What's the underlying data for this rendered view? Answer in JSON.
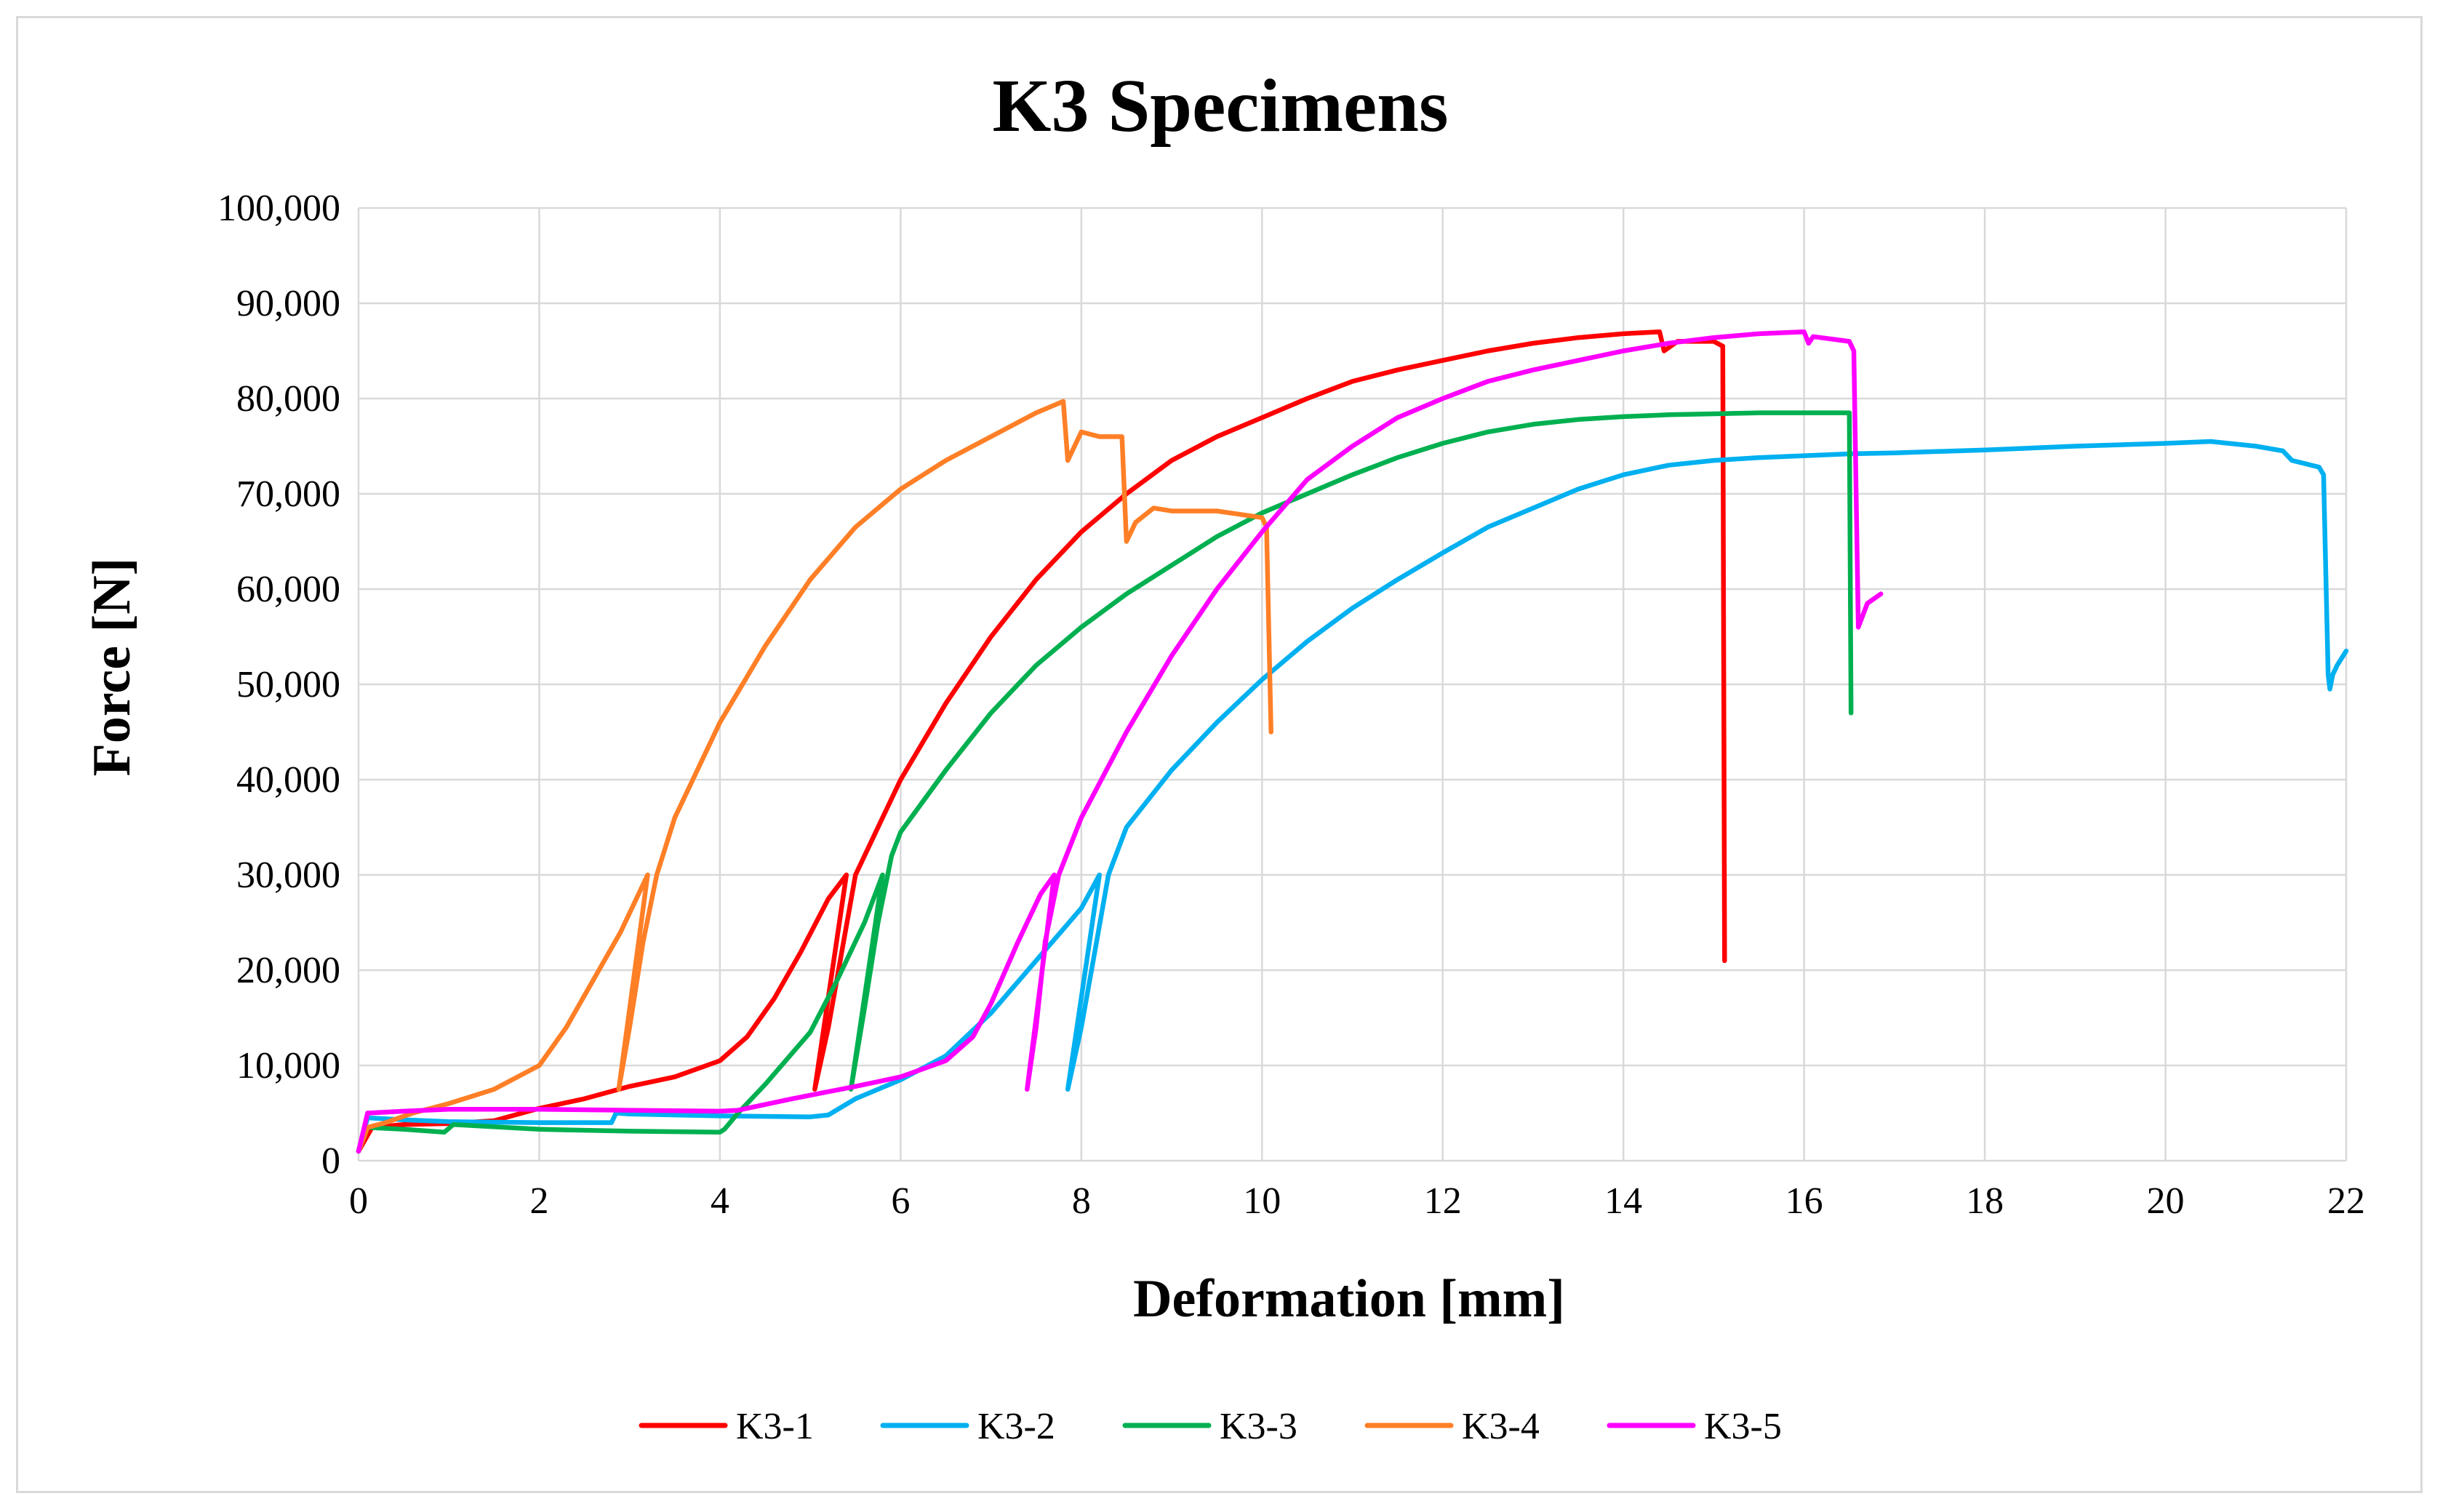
{
  "chart_data": {
    "type": "line",
    "title": "K3 Specimens",
    "xlabel": "Deformation  [mm]",
    "ylabel": "Force  [N]",
    "xlim": [
      0,
      22
    ],
    "ylim": [
      0,
      100000
    ],
    "x_ticks": [
      0,
      2,
      4,
      6,
      8,
      10,
      12,
      14,
      16,
      18,
      20,
      22
    ],
    "x_tick_labels": [
      "0",
      "2",
      "4",
      "6",
      "8",
      "10",
      "12",
      "14",
      "16",
      "18",
      "20",
      "22"
    ],
    "y_ticks": [
      0,
      10000,
      20000,
      30000,
      40000,
      50000,
      60000,
      70000,
      80000,
      90000,
      100000
    ],
    "y_tick_labels": [
      "0",
      "10,000",
      "20,000",
      "30,000",
      "40,000",
      "50,000",
      "60,000",
      "70,000",
      "80,000",
      "90,000",
      "100,000"
    ],
    "grid": true,
    "legend_position": "bottom",
    "series": [
      {
        "name": "K3-1",
        "color": "#ff0000",
        "points": [
          [
            0,
            1000
          ],
          [
            0.15,
            3500
          ],
          [
            0.5,
            3800
          ],
          [
            1,
            3900
          ],
          [
            1.5,
            4200
          ],
          [
            2,
            5500
          ],
          [
            2.5,
            6500
          ],
          [
            3,
            7800
          ],
          [
            3.5,
            8800
          ],
          [
            4,
            10500
          ],
          [
            4.3,
            13000
          ],
          [
            4.6,
            17000
          ],
          [
            4.9,
            22000
          ],
          [
            5.2,
            27500
          ],
          [
            5.4,
            30000
          ],
          [
            5.05,
            7500
          ],
          [
            5.2,
            14000
          ],
          [
            5.35,
            22000
          ],
          [
            5.5,
            30000
          ],
          [
            5.8,
            36000
          ],
          [
            6,
            40000
          ],
          [
            6.5,
            48000
          ],
          [
            7,
            55000
          ],
          [
            7.5,
            61000
          ],
          [
            8,
            66000
          ],
          [
            8.5,
            70000
          ],
          [
            9,
            73500
          ],
          [
            9.5,
            76000
          ],
          [
            10,
            78000
          ],
          [
            10.5,
            80000
          ],
          [
            11,
            81800
          ],
          [
            11.5,
            83000
          ],
          [
            12,
            84000
          ],
          [
            12.5,
            85000
          ],
          [
            13,
            85800
          ],
          [
            13.5,
            86400
          ],
          [
            14,
            86800
          ],
          [
            14.4,
            87000
          ],
          [
            14.45,
            85000
          ],
          [
            14.6,
            86000
          ],
          [
            15,
            86000
          ],
          [
            15.1,
            85500
          ],
          [
            15.12,
            21000
          ]
        ]
      },
      {
        "name": "K3-2",
        "color": "#00b0f0",
        "points": [
          [
            0,
            1000
          ],
          [
            0.1,
            4500
          ],
          [
            0.5,
            4300
          ],
          [
            1,
            4100
          ],
          [
            2,
            4000
          ],
          [
            2.8,
            4000
          ],
          [
            2.85,
            5000
          ],
          [
            3,
            4900
          ],
          [
            4,
            4700
          ],
          [
            5,
            4600
          ],
          [
            5.2,
            4800
          ],
          [
            5.5,
            6500
          ],
          [
            6,
            8500
          ],
          [
            6.5,
            11000
          ],
          [
            7,
            15500
          ],
          [
            7.5,
            21000
          ],
          [
            8,
            26500
          ],
          [
            8.2,
            30000
          ],
          [
            7.85,
            7500
          ],
          [
            8.0,
            14000
          ],
          [
            8.15,
            22000
          ],
          [
            8.3,
            30000
          ],
          [
            8.5,
            35000
          ],
          [
            9,
            41000
          ],
          [
            9.5,
            46000
          ],
          [
            10,
            50500
          ],
          [
            10.5,
            54500
          ],
          [
            11,
            58000
          ],
          [
            11.5,
            61000
          ],
          [
            12,
            63800
          ],
          [
            12.5,
            66500
          ],
          [
            13,
            68500
          ],
          [
            13.5,
            70500
          ],
          [
            14,
            72000
          ],
          [
            14.5,
            73000
          ],
          [
            15,
            73500
          ],
          [
            15.5,
            73800
          ],
          [
            16,
            74000
          ],
          [
            16.5,
            74200
          ],
          [
            17,
            74300
          ],
          [
            18,
            74600
          ],
          [
            19,
            75000
          ],
          [
            20,
            75300
          ],
          [
            20.5,
            75500
          ],
          [
            21,
            75000
          ],
          [
            21.3,
            74500
          ],
          [
            21.4,
            73500
          ],
          [
            21.7,
            72800
          ],
          [
            21.75,
            72000
          ],
          [
            21.8,
            51000
          ],
          [
            21.82,
            49500
          ],
          [
            21.85,
            51000
          ],
          [
            21.9,
            52000
          ],
          [
            22,
            53500
          ]
        ]
      },
      {
        "name": "K3-3",
        "color": "#00b050",
        "points": [
          [
            0,
            1000
          ],
          [
            0.1,
            3500
          ],
          [
            0.5,
            3300
          ],
          [
            0.95,
            3000
          ],
          [
            1.05,
            3800
          ],
          [
            2,
            3300
          ],
          [
            3,
            3100
          ],
          [
            4,
            3000
          ],
          [
            4.05,
            3300
          ],
          [
            4.2,
            5000
          ],
          [
            4.5,
            8000
          ],
          [
            5,
            13500
          ],
          [
            5.3,
            19000
          ],
          [
            5.6,
            25000
          ],
          [
            5.8,
            30000
          ],
          [
            5.45,
            7500
          ],
          [
            5.6,
            16000
          ],
          [
            5.75,
            25000
          ],
          [
            5.9,
            32000
          ],
          [
            6,
            34500
          ],
          [
            6.5,
            41000
          ],
          [
            7,
            47000
          ],
          [
            7.5,
            52000
          ],
          [
            8,
            56000
          ],
          [
            8.5,
            59500
          ],
          [
            9,
            62500
          ],
          [
            9.5,
            65500
          ],
          [
            10,
            68000
          ],
          [
            10.5,
            70000
          ],
          [
            11,
            72000
          ],
          [
            11.5,
            73800
          ],
          [
            12,
            75300
          ],
          [
            12.5,
            76500
          ],
          [
            13,
            77300
          ],
          [
            13.5,
            77800
          ],
          [
            14,
            78100
          ],
          [
            14.5,
            78300
          ],
          [
            15,
            78400
          ],
          [
            15.5,
            78500
          ],
          [
            16,
            78500
          ],
          [
            16.5,
            78500
          ],
          [
            16.52,
            47000
          ]
        ]
      },
      {
        "name": "K3-4",
        "color": "#ff7f27",
        "points": [
          [
            0,
            1000
          ],
          [
            0.1,
            3500
          ],
          [
            0.3,
            4000
          ],
          [
            0.6,
            5000
          ],
          [
            1,
            6000
          ],
          [
            1.5,
            7500
          ],
          [
            2,
            10000
          ],
          [
            2.3,
            14000
          ],
          [
            2.6,
            19000
          ],
          [
            2.9,
            24000
          ],
          [
            3.2,
            30000
          ],
          [
            2.88,
            7500
          ],
          [
            3.0,
            14000
          ],
          [
            3.15,
            23000
          ],
          [
            3.3,
            30000
          ],
          [
            3.5,
            36000
          ],
          [
            4,
            46000
          ],
          [
            4.5,
            54000
          ],
          [
            5,
            61000
          ],
          [
            5.5,
            66500
          ],
          [
            6,
            70500
          ],
          [
            6.5,
            73500
          ],
          [
            7,
            76000
          ],
          [
            7.5,
            78500
          ],
          [
            7.8,
            79700
          ],
          [
            7.85,
            73500
          ],
          [
            8,
            76500
          ],
          [
            8.2,
            76000
          ],
          [
            8.45,
            76000
          ],
          [
            8.5,
            65000
          ],
          [
            8.6,
            67000
          ],
          [
            8.8,
            68500
          ],
          [
            9,
            68200
          ],
          [
            9.5,
            68200
          ],
          [
            10,
            67500
          ],
          [
            10.05,
            66500
          ],
          [
            10.1,
            45000
          ]
        ]
      },
      {
        "name": "K3-5",
        "color": "#ff00ff",
        "points": [
          [
            0,
            1000
          ],
          [
            0.1,
            5000
          ],
          [
            0.5,
            5200
          ],
          [
            1,
            5400
          ],
          [
            2,
            5400
          ],
          [
            3,
            5300
          ],
          [
            4,
            5200
          ],
          [
            4.2,
            5300
          ],
          [
            4.8,
            6500
          ],
          [
            5.5,
            7800
          ],
          [
            6,
            8800
          ],
          [
            6.5,
            10500
          ],
          [
            6.8,
            13000
          ],
          [
            7,
            16500
          ],
          [
            7.3,
            23000
          ],
          [
            7.55,
            28000
          ],
          [
            7.7,
            30000
          ],
          [
            7.4,
            7500
          ],
          [
            7.5,
            14000
          ],
          [
            7.6,
            23000
          ],
          [
            7.75,
            30000
          ],
          [
            8,
            36000
          ],
          [
            8.5,
            45000
          ],
          [
            9,
            53000
          ],
          [
            9.5,
            60000
          ],
          [
            10,
            66000
          ],
          [
            10.5,
            71500
          ],
          [
            11,
            75000
          ],
          [
            11.5,
            78000
          ],
          [
            12,
            80000
          ],
          [
            12.5,
            81800
          ],
          [
            13,
            83000
          ],
          [
            13.5,
            84000
          ],
          [
            14,
            85000
          ],
          [
            14.5,
            85800
          ],
          [
            15,
            86400
          ],
          [
            15.5,
            86800
          ],
          [
            16,
            87000
          ],
          [
            16.05,
            85800
          ],
          [
            16.1,
            86500
          ],
          [
            16.5,
            86000
          ],
          [
            16.55,
            85000
          ],
          [
            16.6,
            56000
          ],
          [
            16.7,
            58500
          ],
          [
            16.85,
            59500
          ]
        ]
      }
    ]
  }
}
